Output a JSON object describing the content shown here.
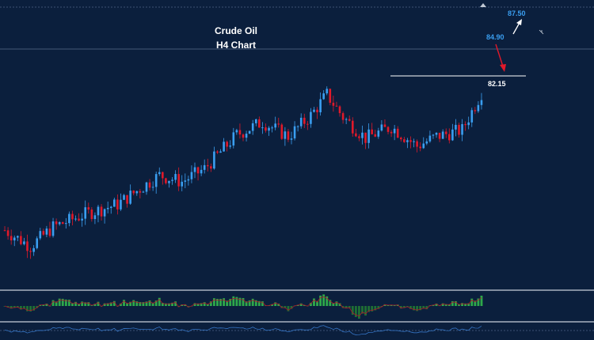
{
  "chart_data": {
    "type": "candlestick",
    "title": "Crude Oil",
    "subtitle": "H4 Chart",
    "colors": {
      "background": "#0b1f3d",
      "bull": "#3a9ef0",
      "bear": "#e0192a",
      "level_line": "#ffffff",
      "target_label": "#3a9ef0",
      "hist_up": "#2ea84a",
      "hist_down": "#1f6f34",
      "signal_line": "#b0182a",
      "oscillator": "#3a7fd6"
    },
    "price_path": [
      {
        "index": 0,
        "price": 76.4
      },
      {
        "index": 8,
        "price": 75.4
      },
      {
        "index": 15,
        "price": 76.6
      },
      {
        "index": 25,
        "price": 77.4
      },
      {
        "index": 35,
        "price": 78.0
      },
      {
        "index": 48,
        "price": 79.8
      },
      {
        "index": 55,
        "price": 79.4
      },
      {
        "index": 62,
        "price": 80.2
      },
      {
        "index": 72,
        "price": 82.3
      },
      {
        "index": 80,
        "price": 83.1
      },
      {
        "index": 88,
        "price": 82.2
      },
      {
        "index": 95,
        "price": 83.5
      },
      {
        "index": 100,
        "price": 84.8
      },
      {
        "index": 105,
        "price": 83.4
      },
      {
        "index": 112,
        "price": 82.1
      },
      {
        "index": 120,
        "price": 82.8
      },
      {
        "index": 128,
        "price": 81.6
      },
      {
        "index": 134,
        "price": 82.2
      },
      {
        "index": 142,
        "price": 82.6
      },
      {
        "index": 148,
        "price": 84.9
      }
    ],
    "price_range": [
      74.5,
      88.2
    ],
    "levels": [
      {
        "label": "87.50",
        "price": 87.5,
        "kind": "target",
        "arrow": "up"
      },
      {
        "label": "84.90",
        "price": 84.9,
        "kind": "current",
        "arrow": "down"
      },
      {
        "label": "82.15",
        "price": 82.15,
        "kind": "support"
      }
    ],
    "indicators": [
      {
        "type": "histogram",
        "name": "",
        "range": [
          -1,
          1
        ]
      },
      {
        "type": "oscillator",
        "name": "",
        "range": [
          -1,
          1
        ]
      }
    ],
    "grid": false
  }
}
